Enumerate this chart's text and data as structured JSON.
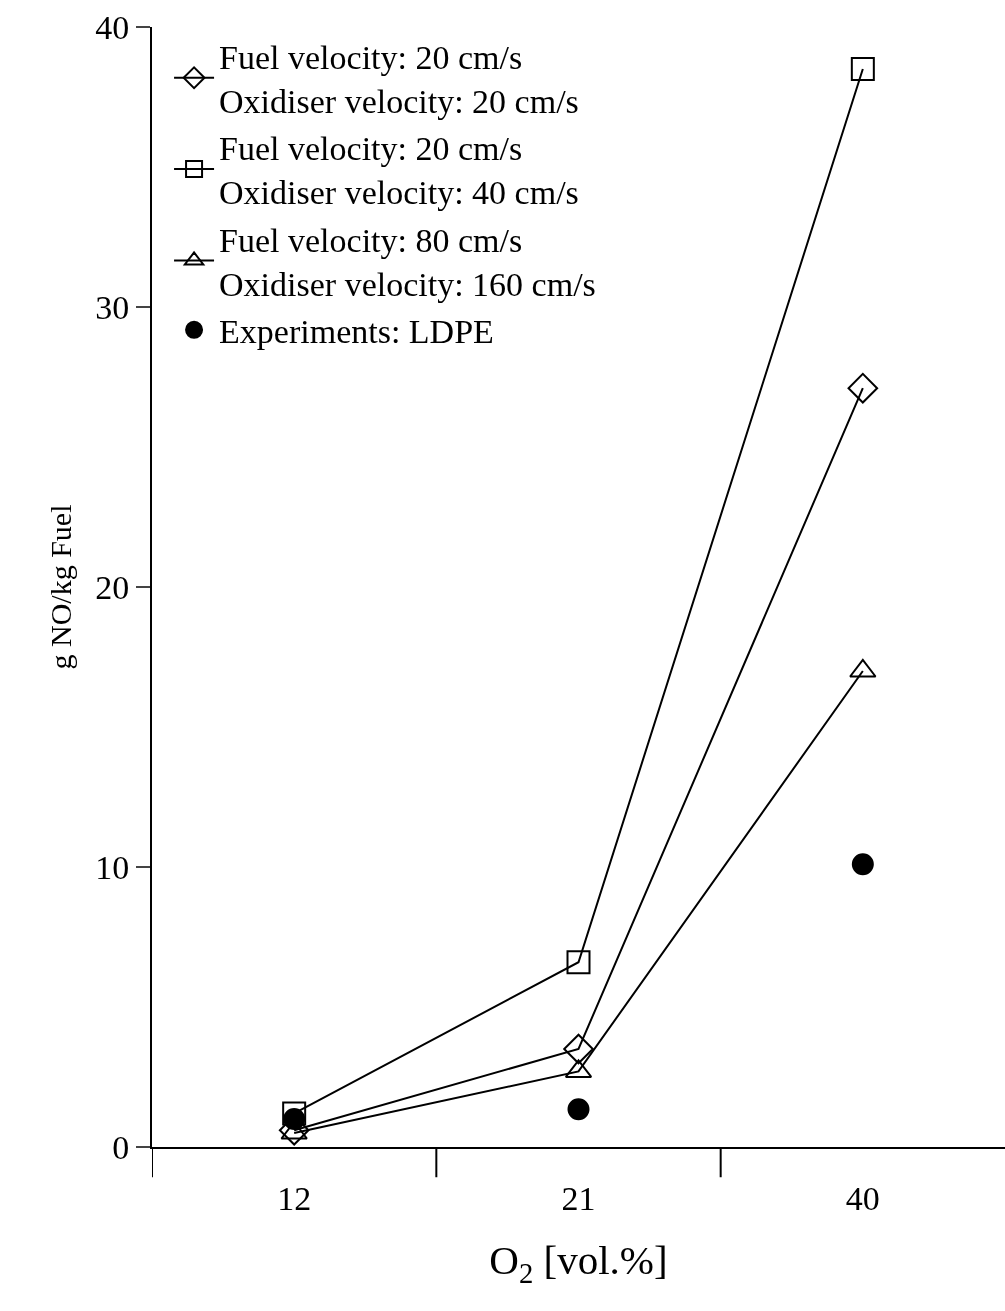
{
  "chart_data": {
    "type": "line",
    "xlabel": "O$_{2}$ [vol.%]",
    "ylabel": "g NO/kg Fuel",
    "categories": [
      "12",
      "21",
      "40"
    ],
    "ylim": [
      0,
      40
    ],
    "yticks": [
      0,
      10,
      20,
      30,
      40
    ],
    "legend": "top left",
    "series": [
      {
        "name": "Fuel velocity: 20 cm/s\nOxidiser velocity: 20 cm/s",
        "color": "#000000",
        "marker": "diamond",
        "values": [
          0.6,
          3.5,
          27.1
        ]
      },
      {
        "name": "Fuel velocity: 20 cm/s\nOxidiser velocity: 40 cm/s",
        "color": "#000000",
        "marker": "square",
        "values": [
          1.2,
          6.6,
          38.5
        ]
      },
      {
        "name": "Fuel velocity: 80 cm/s\nOxidiser velocity: 160 cm/s",
        "color": "#000000",
        "marker": "triangle",
        "values": [
          0.5,
          2.7,
          17.0
        ]
      },
      {
        "name": "Experiments: LDPE",
        "type": "scatter",
        "color": "#000000",
        "marker": "circle",
        "values": [
          1.0,
          1.35,
          10.1
        ]
      }
    ]
  }
}
